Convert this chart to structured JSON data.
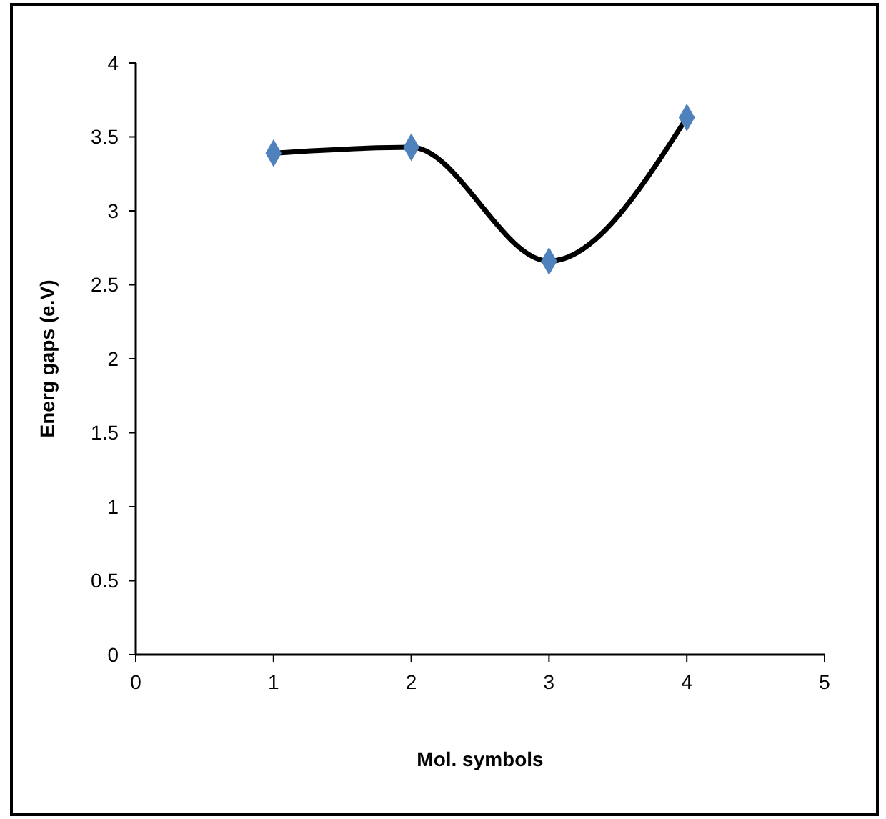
{
  "chart_data": {
    "type": "line",
    "xlabel": "Mol. symbols",
    "ylabel": "Energ gaps (e.V)",
    "x": [
      1,
      2,
      3,
      4
    ],
    "series": [
      {
        "type": "line",
        "color": "#000000",
        "marker": "none",
        "values": [
          3.39,
          3.43,
          2.66,
          3.63
        ]
      },
      {
        "type": "scatter",
        "color": "#4f81bd",
        "values": [
          3.39,
          3.43,
          2.66,
          3.63
        ]
      }
    ],
    "marker": "diamond",
    "line_style": "solid",
    "xlim": [
      0,
      5
    ],
    "xticks": [
      0,
      1,
      2,
      3,
      4,
      5
    ],
    "ylim": [
      0,
      4
    ],
    "yticks": [
      0,
      0.5,
      1,
      1.5,
      2,
      2.5,
      3,
      3.5,
      4
    ],
    "grid": false
  }
}
